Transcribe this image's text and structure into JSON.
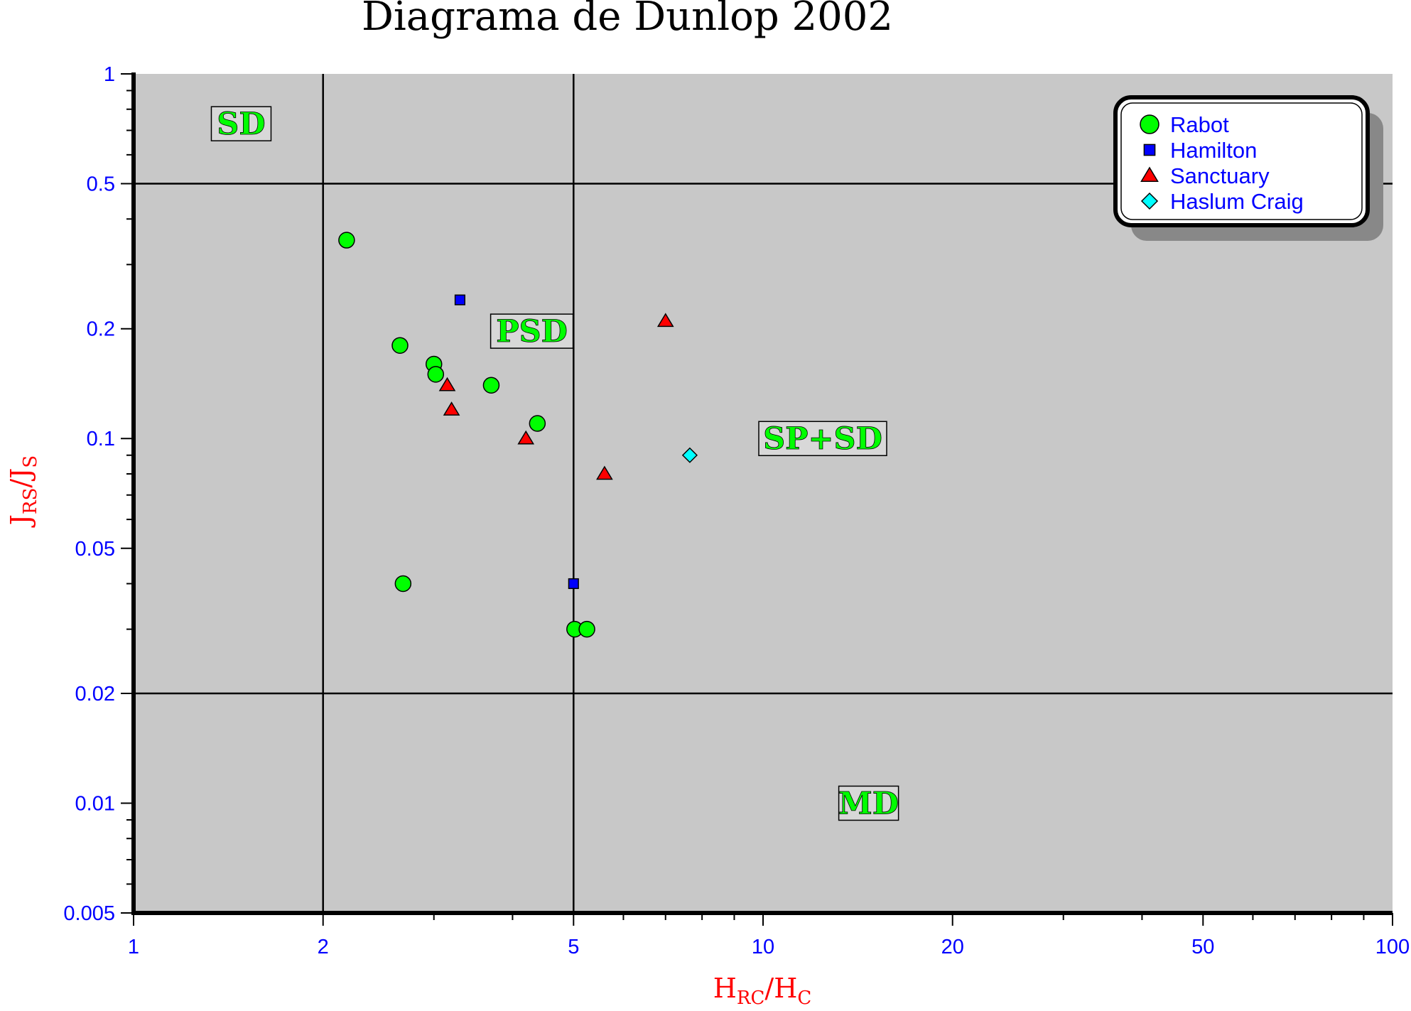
{
  "chart_data": {
    "type": "scatter",
    "title": "Diagrama de Dunlop 2002",
    "xlabel": {
      "main1": "H",
      "sub1": "RC",
      "sep": "/",
      "main2": "H",
      "sub2": "C"
    },
    "ylabel": {
      "main1": "J",
      "sub1": "RS",
      "sep": "/",
      "main2": "J",
      "sub2": "S"
    },
    "x_scale": "log",
    "y_scale": "log",
    "xlim": [
      1,
      100
    ],
    "ylim": [
      0.005,
      1
    ],
    "x_ticks": [
      {
        "value": 1,
        "label": "1"
      },
      {
        "value": 2,
        "label": "2"
      },
      {
        "value": 5,
        "label": "5"
      },
      {
        "value": 10,
        "label": "10"
      },
      {
        "value": 20,
        "label": "20"
      },
      {
        "value": 50,
        "label": "50"
      },
      {
        "value": 100,
        "label": "100"
      }
    ],
    "y_ticks": [
      {
        "value": 1,
        "label": "1"
      },
      {
        "value": 0.5,
        "label": "0.5"
      },
      {
        "value": 0.2,
        "label": "0.2"
      },
      {
        "value": 0.1,
        "label": "0.1"
      },
      {
        "value": 0.05,
        "label": "0.05"
      },
      {
        "value": 0.02,
        "label": "0.02"
      },
      {
        "value": 0.01,
        "label": "0.01"
      },
      {
        "value": 0.005,
        "label": "0.005"
      }
    ],
    "reference_lines": {
      "x": [
        2,
        5
      ],
      "y": [
        0.5,
        0.02
      ]
    },
    "regions": [
      {
        "label": "SD",
        "x": 1.35,
        "y": 0.73
      },
      {
        "label": "PSD",
        "x": 3.75,
        "y": 0.197
      },
      {
        "label": "SP+SD",
        "x": 10,
        "y": 0.1
      },
      {
        "label": "MD",
        "x": 13.4,
        "y": 0.01
      }
    ],
    "series": [
      {
        "name": "Rabot",
        "marker": "circle",
        "color": "#00ff00",
        "points": [
          [
            2.18,
            0.35
          ],
          [
            2.65,
            0.18
          ],
          [
            3.0,
            0.16
          ],
          [
            3.02,
            0.15
          ],
          [
            3.7,
            0.14
          ],
          [
            4.38,
            0.11
          ],
          [
            2.68,
            0.04
          ],
          [
            5.02,
            0.03
          ],
          [
            5.25,
            0.03
          ]
        ]
      },
      {
        "name": "Hamilton",
        "marker": "square",
        "color": "#0000ff",
        "points": [
          [
            3.3,
            0.24
          ],
          [
            5.0,
            0.04
          ]
        ]
      },
      {
        "name": "Sanctuary",
        "marker": "triangle",
        "color": "#ff0000",
        "points": [
          [
            3.15,
            0.14
          ],
          [
            3.2,
            0.12
          ],
          [
            4.2,
            0.1
          ],
          [
            5.6,
            0.08
          ],
          [
            7.0,
            0.21
          ]
        ]
      },
      {
        "name": "Haslum Craig",
        "marker": "diamond",
        "color": "#00ffff",
        "points": [
          [
            7.65,
            0.09
          ]
        ]
      }
    ],
    "legend": {
      "position": "top-right"
    },
    "grid": false,
    "colors": {
      "plot_background": "#c8c8c8",
      "axis": "#000000",
      "tick_labels": "#0000ff",
      "axis_labels": "#ff0000",
      "region_labels": "#00ff00"
    }
  }
}
